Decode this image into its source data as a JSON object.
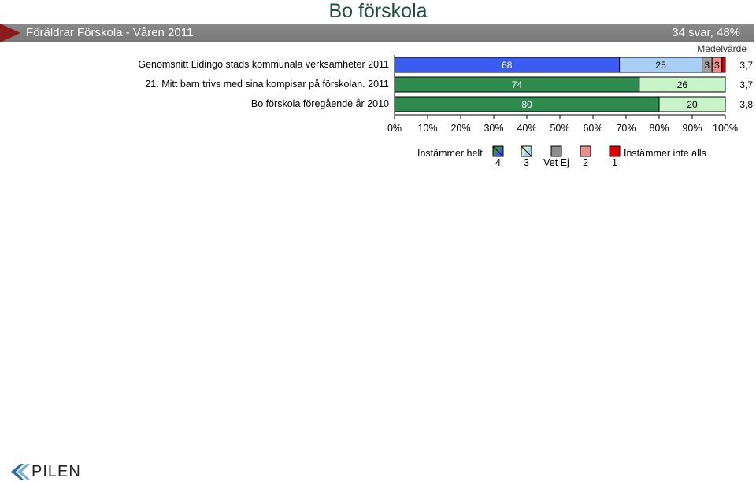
{
  "page": {
    "title": "Bo förskola",
    "header_left": "Föräldrar Förskola - Våren 2011",
    "header_right": "34 svar, 48%",
    "mean_header": "Medelvärde",
    "logo_text": "PILEN"
  },
  "chart_data": {
    "type": "bar",
    "orientation": "horizontal",
    "stacked": true,
    "normalized_percent": true,
    "xlim": [
      0,
      100
    ],
    "x_ticks": [
      "0%",
      "10%",
      "20%",
      "30%",
      "40%",
      "50%",
      "60%",
      "70%",
      "80%",
      "90%",
      "100%"
    ],
    "rows": [
      {
        "label": "Genomsnitt Lidingö stads kommunala verksamheter  2011",
        "values": [
          68,
          25,
          3,
          3,
          1
        ],
        "mean": "3,7",
        "colors": [
          "#3b5cf0",
          "#a8d0f7",
          "#a0a0a0",
          "#f28b8b",
          "#e00000"
        ]
      },
      {
        "label": "21.  Mitt barn trivs med sina kompisar på förskolan.  2011",
        "values": [
          74,
          26,
          0,
          0,
          0
        ],
        "mean": "3,7",
        "colors": [
          "#2f8a4e",
          "#c9f4c9",
          "#a0a0a0",
          "#f28b8b",
          "#e00000"
        ]
      },
      {
        "label": "Bo förskola föregående år  2010",
        "values": [
          80,
          20,
          0,
          0,
          0
        ],
        "mean": "3,8",
        "colors": [
          "#2f8a4e",
          "#c9f4c9",
          "#a0a0a0",
          "#f28b8b",
          "#e00000"
        ]
      }
    ],
    "legend": {
      "left_label": "Instämmer helt",
      "right_label": "Instämmer inte alls",
      "items": [
        {
          "label": "4",
          "color": "#2f8a4e",
          "color2": "#3b5cf0"
        },
        {
          "label": "3",
          "color": "#c9f4c9",
          "color2": "#a8d0f7"
        },
        {
          "label": "Vet Ej",
          "color": "#8c8c8c"
        },
        {
          "label": "2",
          "color": "#f28b8b"
        },
        {
          "label": "1",
          "color": "#e00000"
        }
      ]
    }
  }
}
